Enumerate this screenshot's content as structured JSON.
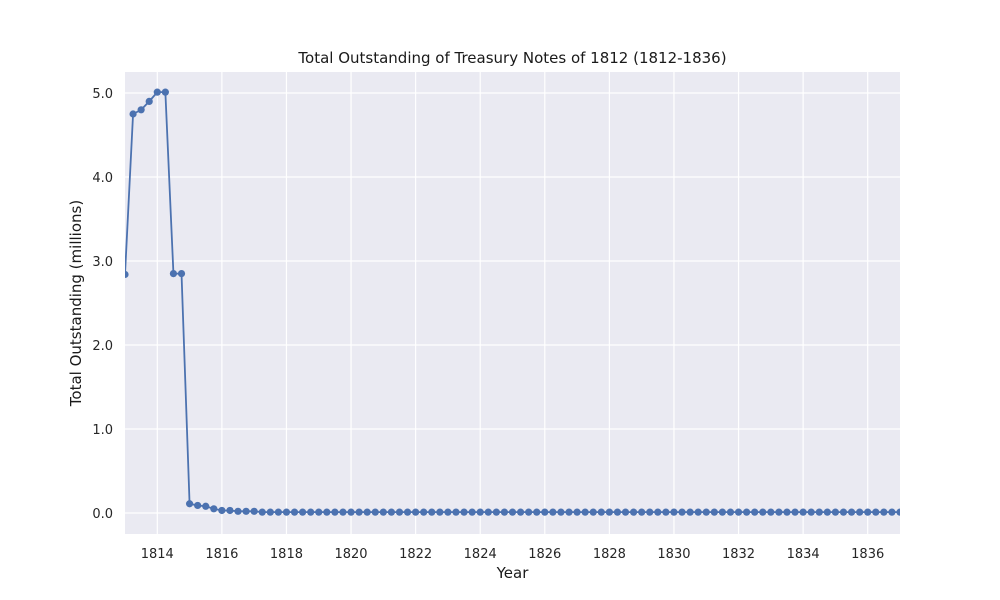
{
  "chart_data": {
    "type": "line",
    "title": "Total Outstanding of Treasury Notes of 1812 (1812-1836)",
    "xlabel": "Year",
    "ylabel": "Total Outstanding (millions)",
    "xlim": [
      1813.0,
      1837.0
    ],
    "ylim": [
      -0.25,
      5.25
    ],
    "grid": true,
    "legend": "none",
    "colors": {
      "series": "#4c72b0",
      "plot_bg": "#eaeaf2",
      "grid": "#ffffff"
    },
    "x_ticks": [
      1814,
      1816,
      1818,
      1820,
      1822,
      1824,
      1826,
      1828,
      1830,
      1832,
      1834,
      1836
    ],
    "x_tick_labels": [
      "1814",
      "1816",
      "1818",
      "1820",
      "1822",
      "1824",
      "1826",
      "1828",
      "1830",
      "1832",
      "1834",
      "1836"
    ],
    "y_ticks": [
      0,
      1,
      2,
      3,
      4,
      5
    ],
    "y_tick_labels": [
      "0.0",
      "1.0",
      "2.0",
      "3.0",
      "4.0",
      "5.0"
    ],
    "series": [
      {
        "x": [
          1813.0,
          1813.25,
          1813.5,
          1813.75,
          1814.0,
          1814.25,
          1814.5,
          1814.75,
          1815.0,
          1815.25,
          1815.5,
          1815.75,
          1816.0,
          1816.25,
          1816.5,
          1816.75,
          1817.0,
          1817.25,
          1817.5,
          1817.75,
          1818.0,
          1818.25,
          1818.5,
          1818.75,
          1819.0,
          1819.25,
          1819.5,
          1819.75,
          1820.0,
          1820.25,
          1820.5,
          1820.75,
          1821.0,
          1821.25,
          1821.5,
          1821.75,
          1822.0,
          1822.25,
          1822.5,
          1822.75,
          1823.0,
          1823.25,
          1823.5,
          1823.75,
          1824.0,
          1824.25,
          1824.5,
          1824.75,
          1825.0,
          1825.25,
          1825.5,
          1825.75,
          1826.0,
          1826.25,
          1826.5,
          1826.75,
          1827.0,
          1827.25,
          1827.5,
          1827.75,
          1828.0,
          1828.25,
          1828.5,
          1828.75,
          1829.0,
          1829.25,
          1829.5,
          1829.75,
          1830.0,
          1830.25,
          1830.5,
          1830.75,
          1831.0,
          1831.25,
          1831.5,
          1831.75,
          1832.0,
          1832.25,
          1832.5,
          1832.75,
          1833.0,
          1833.25,
          1833.5,
          1833.75,
          1834.0,
          1834.25,
          1834.5,
          1834.75,
          1835.0,
          1835.25,
          1835.5,
          1835.75,
          1836.0,
          1836.25,
          1836.5,
          1836.75,
          1837.0
        ],
        "y": [
          2.84,
          4.75,
          4.8,
          4.9,
          5.01,
          5.01,
          2.85,
          2.85,
          0.11,
          0.09,
          0.08,
          0.05,
          0.03,
          0.03,
          0.02,
          0.02,
          0.02,
          0.01,
          0.01,
          0.01,
          0.01,
          0.01,
          0.01,
          0.01,
          0.01,
          0.01,
          0.01,
          0.01,
          0.01,
          0.01,
          0.01,
          0.01,
          0.01,
          0.01,
          0.01,
          0.01,
          0.01,
          0.01,
          0.01,
          0.01,
          0.01,
          0.01,
          0.01,
          0.01,
          0.01,
          0.01,
          0.01,
          0.01,
          0.01,
          0.01,
          0.01,
          0.01,
          0.01,
          0.01,
          0.01,
          0.01,
          0.01,
          0.01,
          0.01,
          0.01,
          0.01,
          0.01,
          0.01,
          0.01,
          0.01,
          0.01,
          0.01,
          0.01,
          0.01,
          0.01,
          0.01,
          0.01,
          0.01,
          0.01,
          0.01,
          0.01,
          0.01,
          0.01,
          0.01,
          0.01,
          0.01,
          0.01,
          0.01,
          0.01,
          0.01,
          0.01,
          0.01,
          0.01,
          0.01,
          0.01,
          0.01,
          0.01,
          0.01,
          0.01,
          0.01,
          0.01,
          0.01
        ]
      }
    ]
  }
}
